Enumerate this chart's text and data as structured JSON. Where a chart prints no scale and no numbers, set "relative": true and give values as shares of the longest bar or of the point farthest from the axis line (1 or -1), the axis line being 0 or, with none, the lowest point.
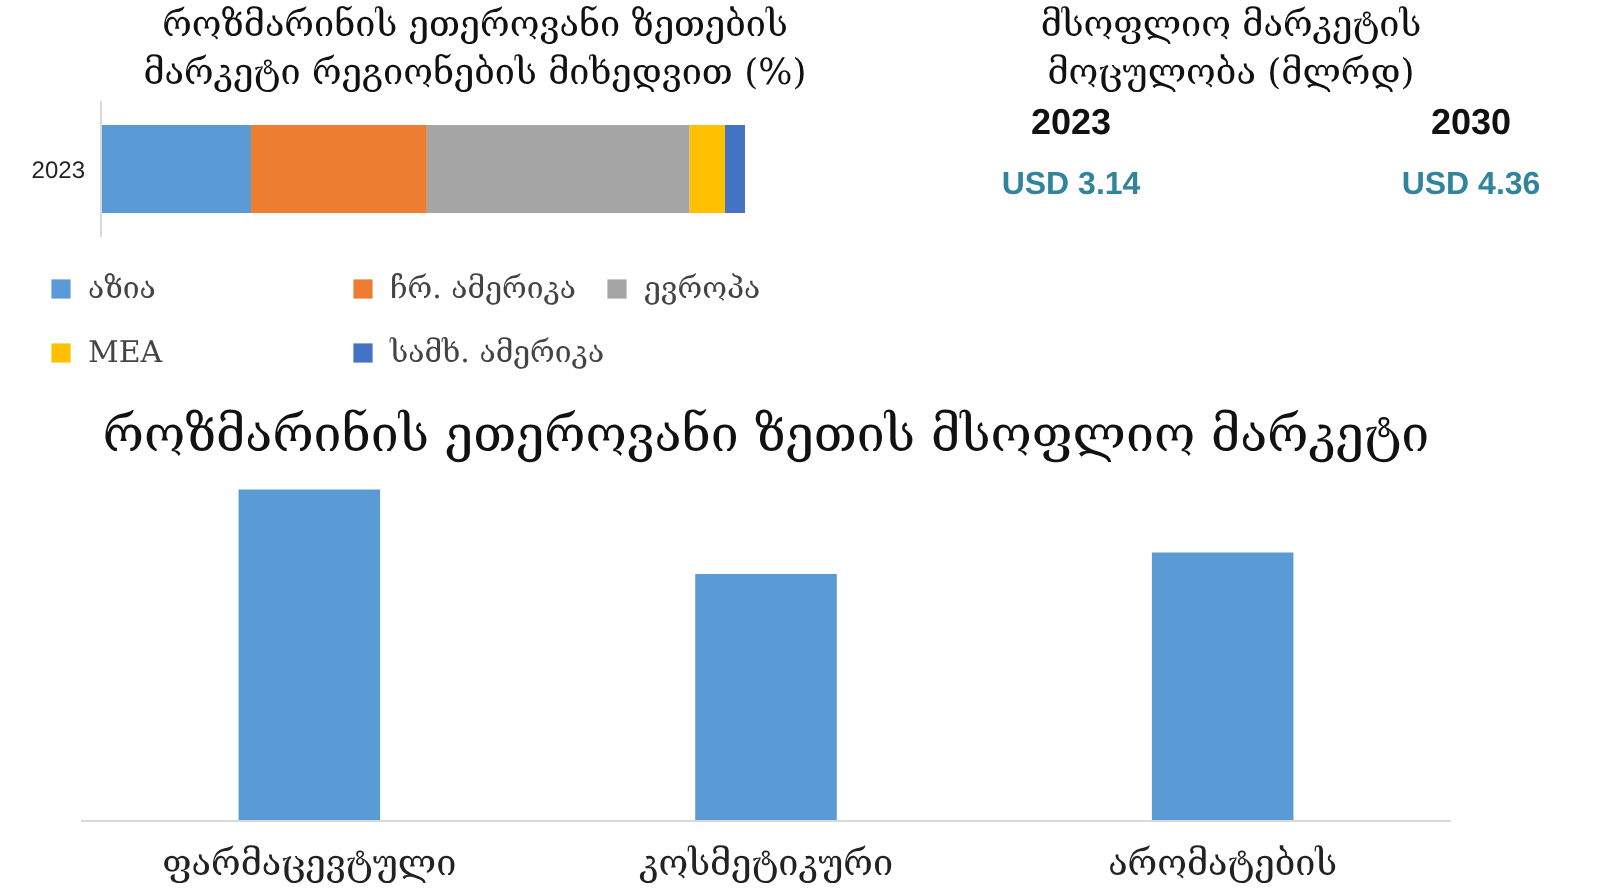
{
  "chart_data": [
    {
      "type": "bar",
      "title": "როზმარინის ეთეროვანი ზეთების მარკეტი რეგიონების მიხედვით (%)",
      "orientation": "horizontal",
      "stacked": true,
      "relative": true,
      "categories": [
        "2023"
      ],
      "series": [
        {
          "name": "აზია",
          "color": "#5b9bd5",
          "values": [
            0.233
          ]
        },
        {
          "name": "ჩრ. ამერიკა",
          "color": "#ed7d31",
          "values": [
            0.273
          ]
        },
        {
          "name": "ევროპა",
          "color": "#a5a5a5",
          "values": [
            0.408
          ]
        },
        {
          "name": "MEA",
          "color": "#ffc000",
          "values": [
            0.055
          ]
        },
        {
          "name": "სამხ. ამერიკა",
          "color": "#4472c4",
          "values": [
            0.031
          ]
        }
      ],
      "legend": "bottom"
    },
    {
      "type": "other",
      "title": "მსოფლიო მარკეტის მოცულობა (მლრდ)",
      "categories": [
        "2023",
        "2030"
      ],
      "values": [
        3.14,
        4.36
      ],
      "value_labels": [
        "USD 3.14",
        "USD 4.36"
      ],
      "color": "#31849b"
    },
    {
      "type": "bar",
      "title": "როზმარინის ეთეროვანი ზეთის მსოფლიო მარკეტი",
      "categories": [
        "ფარმაცევტული",
        "კოსმეტიკური",
        "არომატების"
      ],
      "values": [
        1,
        0.745,
        0.81
      ],
      "color": "#5b9bd5",
      "relative": true
    }
  ]
}
